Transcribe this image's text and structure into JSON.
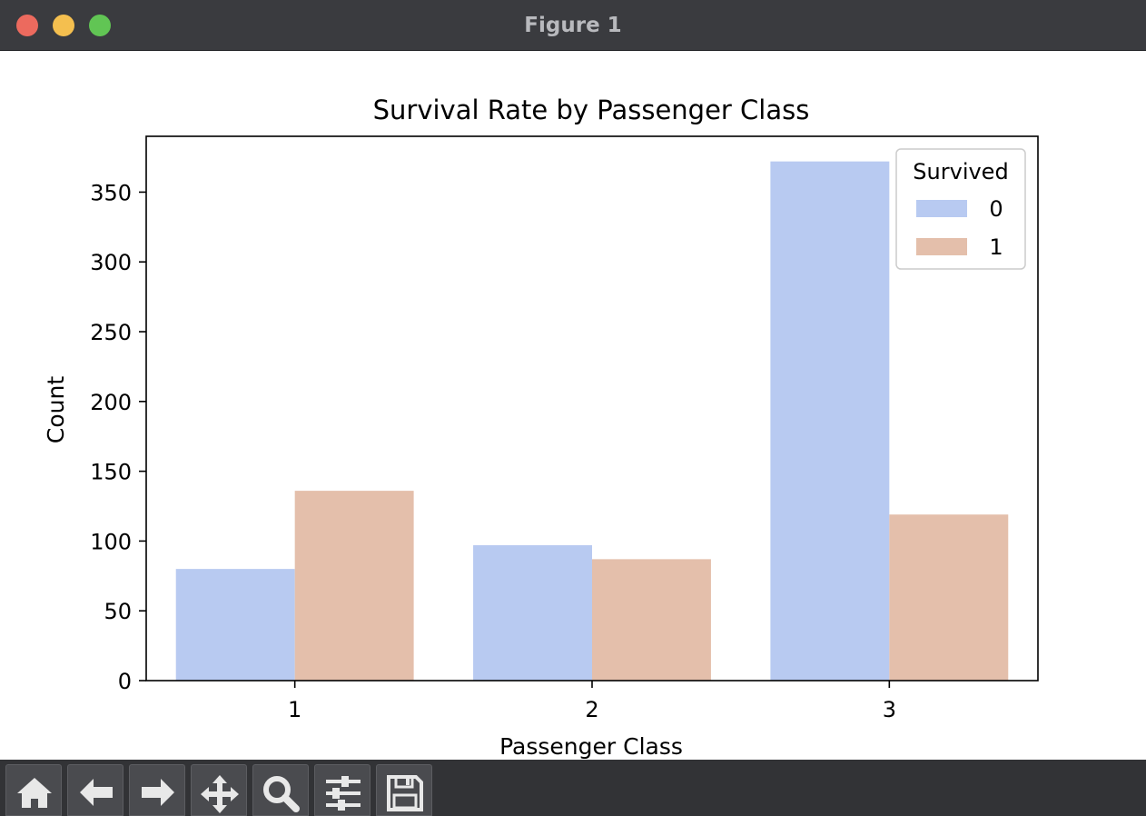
{
  "window": {
    "title": "Figure 1"
  },
  "toolbar": {
    "buttons": [
      {
        "name": "home-button",
        "icon": "home-icon"
      },
      {
        "name": "back-button",
        "icon": "arrow-left-icon"
      },
      {
        "name": "forward-button",
        "icon": "arrow-right-icon"
      },
      {
        "name": "pan-button",
        "icon": "move-icon"
      },
      {
        "name": "zoom-button",
        "icon": "magnifier-icon"
      },
      {
        "name": "configure-subplots-button",
        "icon": "sliders-icon"
      },
      {
        "name": "save-button",
        "icon": "floppy-disk-icon"
      }
    ]
  },
  "chart_data": {
    "type": "bar",
    "title": "Survival Rate by Passenger Class",
    "xlabel": "Passenger Class",
    "ylabel": "Count",
    "categories": [
      "1",
      "2",
      "3"
    ],
    "series": [
      {
        "name": "0",
        "values": [
          80,
          97,
          372
        ],
        "color": "#b8caf1"
      },
      {
        "name": "1",
        "values": [
          136,
          87,
          119
        ],
        "color": "#e4bfab"
      }
    ],
    "ylim": [
      0,
      390
    ],
    "yticks": [
      0,
      50,
      100,
      150,
      200,
      250,
      300,
      350
    ],
    "legend": {
      "title": "Survived",
      "placement": "top-right"
    },
    "grid": false
  }
}
